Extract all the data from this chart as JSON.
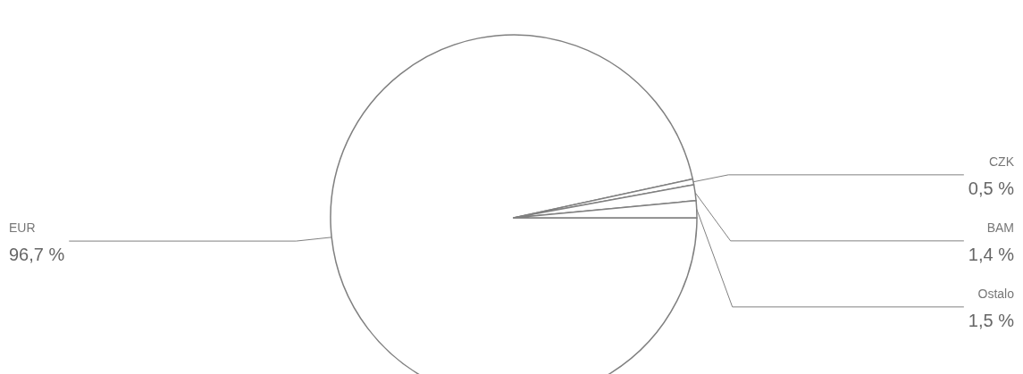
{
  "chart_data": {
    "type": "pie",
    "categories": [
      "EUR",
      "CZK",
      "BAM",
      "Ostalo"
    ],
    "values": [
      96.7,
      0.5,
      1.4,
      1.5
    ],
    "value_labels": [
      "96,7 %",
      "0,5 %",
      "1,4 %",
      "1,5 %"
    ],
    "colors": [
      "#ffffff",
      "#ffffff",
      "#ffffff",
      "#ffffff"
    ],
    "legend": false
  }
}
